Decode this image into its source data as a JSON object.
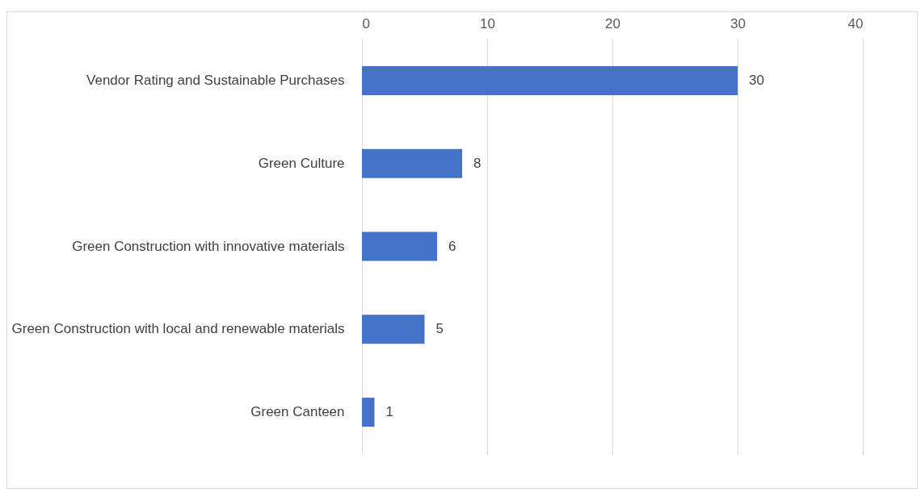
{
  "chart_data": {
    "type": "bar",
    "orientation": "horizontal",
    "categories": [
      "Vendor Rating and Sustainable Purchases",
      "Green Culture",
      "Green Construction with innovative materials",
      "Green Construction with local and renewable materials",
      "Green Canteen"
    ],
    "values": [
      30,
      8,
      6,
      5,
      1
    ],
    "color": "#4472c4",
    "xlim": [
      0,
      40
    ],
    "xticks": [
      0,
      10,
      20,
      30,
      40
    ],
    "grid": true,
    "data_labels": true
  }
}
